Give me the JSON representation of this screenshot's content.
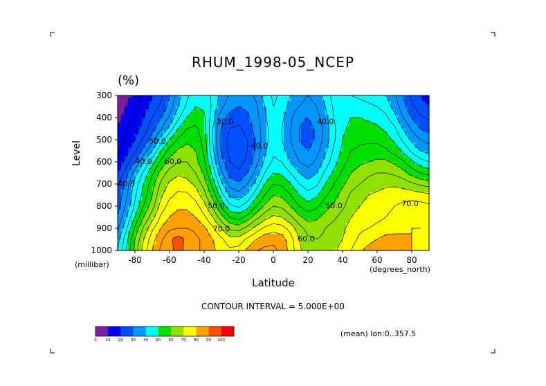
{
  "chart_data": {
    "type": "heatmap",
    "subtype": "filled-contour latitude-pressure section",
    "title": "RHUM_1998-05_NCEP",
    "units": "(%)",
    "ylabel": "Level",
    "yunits": "(millibar)",
    "xlabel": "Latitude",
    "xunits": "(degrees_north)",
    "xlim": [
      -90,
      90
    ],
    "ylim": [
      1000,
      300
    ],
    "xticks": [
      -80,
      -60,
      -40,
      -20,
      0,
      20,
      40,
      60,
      80
    ],
    "yticks": [
      300,
      400,
      500,
      600,
      700,
      800,
      900,
      1000
    ],
    "contour_interval_text": "CONTOUR INTERVAL = 5.000E+00",
    "mean_text": "(mean) lon:0..357.5",
    "levels": [
      0,
      10,
      20,
      30,
      40,
      50,
      60,
      70,
      80,
      90,
      100
    ],
    "colors": [
      "#7b1fa2",
      "#0000f0",
      "#0050ff",
      "#0096ff",
      "#00ffff",
      "#00e000",
      "#90e000",
      "#ffff00",
      "#ffa000",
      "#ff5000",
      "#ff0000"
    ],
    "colorbar_labels": [
      "0",
      "10",
      "20",
      "30",
      "40",
      "50",
      "60",
      "70",
      "80",
      "90",
      "100"
    ],
    "contour_labels": [
      {
        "lat": -28,
        "lev": 420,
        "text": "30.0"
      },
      {
        "lat": -8,
        "lev": 530,
        "text": "40.0"
      },
      {
        "lat": 30,
        "lev": 420,
        "text": "40.0"
      },
      {
        "lat": -67,
        "lev": 510,
        "text": "50.0"
      },
      {
        "lat": -33,
        "lev": 800,
        "text": "50.0"
      },
      {
        "lat": 35,
        "lev": 800,
        "text": "50.0"
      },
      {
        "lat": -58,
        "lev": 600,
        "text": "60.0"
      },
      {
        "lat": 19,
        "lev": 950,
        "text": "60.0"
      },
      {
        "lat": -75,
        "lev": 600,
        "text": "40.0"
      },
      {
        "lat": -85,
        "lev": 700,
        "text": "40.0"
      },
      {
        "lat": -30,
        "lev": 905,
        "text": "70.0"
      },
      {
        "lat": 79,
        "lev": 790,
        "text": "70.0"
      }
    ],
    "lat": [
      -90,
      -85,
      -80,
      -75,
      -70,
      -65,
      -60,
      -55,
      -50,
      -45,
      -40,
      -35,
      -30,
      -25,
      -20,
      -15,
      -10,
      -5,
      0,
      5,
      10,
      15,
      20,
      25,
      30,
      35,
      40,
      45,
      50,
      55,
      60,
      65,
      70,
      75,
      80,
      85,
      90
    ],
    "lev": [
      300,
      350,
      400,
      450,
      500,
      550,
      600,
      650,
      700,
      750,
      800,
      850,
      900,
      950,
      1000
    ],
    "values": [
      [
        5,
        8,
        12,
        16,
        20,
        24,
        30,
        38,
        44,
        48,
        48,
        44,
        38,
        34,
        32,
        33,
        36,
        42,
        46,
        44,
        40,
        37,
        35,
        37,
        42,
        47,
        48,
        45,
        44,
        43,
        42,
        40,
        36,
        30,
        24,
        20,
        18
      ],
      [
        6,
        10,
        14,
        18,
        22,
        26,
        32,
        40,
        46,
        50,
        49,
        44,
        36,
        32,
        30,
        31,
        34,
        40,
        45,
        43,
        38,
        35,
        33,
        35,
        40,
        46,
        49,
        48,
        47,
        46,
        45,
        43,
        38,
        32,
        26,
        22,
        20
      ],
      [
        8,
        12,
        16,
        20,
        25,
        30,
        36,
        44,
        50,
        53,
        51,
        42,
        32,
        28,
        27,
        29,
        33,
        39,
        44,
        41,
        36,
        31,
        30,
        33,
        38,
        45,
        49,
        50,
        50,
        49,
        48,
        46,
        42,
        35,
        30,
        26,
        24
      ],
      [
        10,
        14,
        18,
        22,
        28,
        34,
        42,
        50,
        55,
        56,
        52,
        40,
        30,
        25,
        24,
        27,
        32,
        38,
        43,
        40,
        35,
        30,
        28,
        31,
        37,
        44,
        49,
        51,
        52,
        52,
        51,
        49,
        46,
        40,
        34,
        30,
        28
      ],
      [
        12,
        16,
        20,
        26,
        33,
        42,
        50,
        56,
        59,
        58,
        53,
        40,
        28,
        23,
        22,
        25,
        31,
        38,
        43,
        40,
        35,
        30,
        28,
        31,
        37,
        44,
        50,
        53,
        54,
        54,
        54,
        52,
        49,
        44,
        39,
        35,
        33
      ],
      [
        14,
        18,
        24,
        32,
        40,
        50,
        57,
        61,
        62,
        60,
        54,
        41,
        29,
        23,
        22,
        25,
        31,
        39,
        44,
        42,
        37,
        32,
        30,
        33,
        39,
        46,
        51,
        55,
        56,
        57,
        57,
        56,
        53,
        49,
        44,
        40,
        38
      ],
      [
        16,
        22,
        30,
        40,
        48,
        56,
        62,
        65,
        65,
        62,
        56,
        44,
        32,
        25,
        23,
        26,
        33,
        41,
        46,
        45,
        40,
        35,
        33,
        36,
        42,
        48,
        53,
        57,
        59,
        60,
        61,
        61,
        59,
        56,
        51,
        47,
        45
      ],
      [
        20,
        28,
        38,
        46,
        54,
        62,
        67,
        69,
        68,
        65,
        59,
        48,
        36,
        28,
        26,
        30,
        37,
        45,
        50,
        49,
        45,
        40,
        37,
        40,
        46,
        51,
        56,
        60,
        62,
        64,
        65,
        65,
        64,
        62,
        58,
        55,
        53
      ],
      [
        24,
        32,
        42,
        50,
        58,
        66,
        71,
        73,
        72,
        69,
        63,
        53,
        41,
        33,
        31,
        35,
        42,
        50,
        55,
        54,
        50,
        45,
        42,
        44,
        50,
        55,
        59,
        63,
        65,
        67,
        68,
        69,
        69,
        68,
        66,
        64,
        63
      ],
      [
        26,
        34,
        44,
        52,
        60,
        69,
        74,
        76,
        76,
        73,
        67,
        58,
        47,
        39,
        37,
        41,
        48,
        55,
        60,
        59,
        55,
        50,
        47,
        49,
        54,
        58,
        62,
        66,
        68,
        70,
        71,
        72,
        73,
        73,
        73,
        72,
        71
      ],
      [
        28,
        36,
        46,
        55,
        63,
        72,
        77,
        79,
        79,
        77,
        72,
        64,
        54,
        46,
        44,
        48,
        55,
        61,
        65,
        64,
        60,
        55,
        52,
        54,
        58,
        61,
        64,
        68,
        70,
        72,
        73,
        74,
        75,
        76,
        77,
        77,
        76
      ],
      [
        30,
        40,
        50,
        60,
        68,
        76,
        80,
        82,
        82,
        80,
        76,
        70,
        62,
        55,
        53,
        57,
        63,
        68,
        71,
        70,
        66,
        61,
        58,
        59,
        62,
        64,
        67,
        70,
        72,
        73,
        74,
        75,
        76,
        78,
        79,
        79,
        78
      ],
      [
        34,
        44,
        56,
        66,
        74,
        80,
        84,
        85,
        85,
        84,
        81,
        76,
        70,
        64,
        63,
        67,
        72,
        76,
        78,
        77,
        73,
        67,
        63,
        63,
        65,
        67,
        69,
        72,
        74,
        75,
        76,
        77,
        78,
        79,
        80,
        80,
        79
      ],
      [
        38,
        48,
        60,
        70,
        78,
        84,
        89,
        92,
        89,
        86,
        84,
        80,
        76,
        72,
        72,
        76,
        80,
        83,
        84,
        82,
        77,
        70,
        66,
        65,
        66,
        68,
        70,
        73,
        76,
        78,
        80,
        82,
        82,
        81,
        80,
        79,
        78
      ],
      [
        40,
        50,
        62,
        72,
        80,
        86,
        89,
        91,
        89,
        86,
        84,
        81,
        78,
        76,
        77,
        81,
        85,
        86,
        86,
        84,
        78,
        71,
        67,
        66,
        67,
        69,
        72,
        75,
        79,
        82,
        84,
        85,
        84,
        82,
        80,
        78,
        77
      ]
    ]
  }
}
